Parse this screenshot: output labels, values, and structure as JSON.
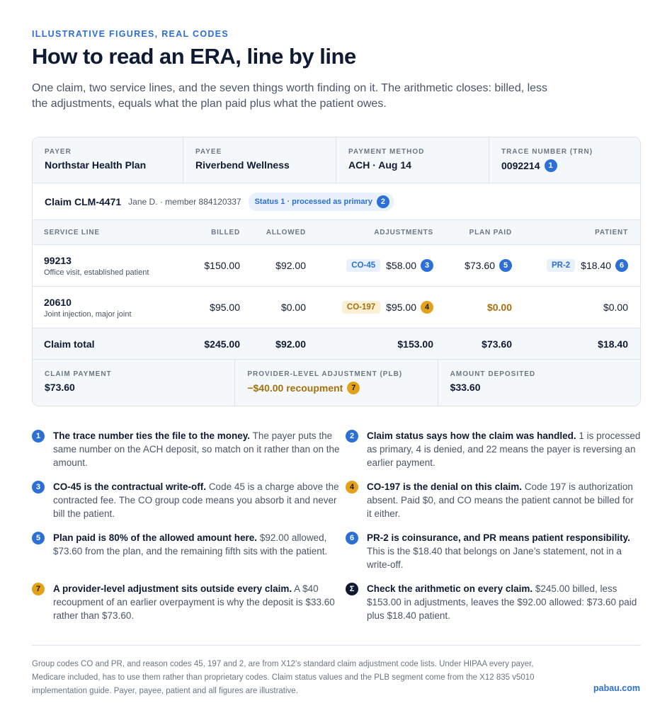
{
  "eyebrow": "ILLUSTRATIVE FIGURES, REAL CODES",
  "title": "How to read an ERA, line by line",
  "intro": "One claim, two service lines, and the seven things worth finding on it. The arithmetic closes: billed, less the adjustments, equals what the plan paid plus what the patient owes.",
  "header": [
    {
      "label": "PAYER",
      "value": "Northstar Health Plan"
    },
    {
      "label": "PAYEE",
      "value": "Riverbend Wellness"
    },
    {
      "label": "PAYMENT METHOD",
      "value": "ACH · Aug 14"
    },
    {
      "label": "TRACE NUMBER (TRN)",
      "value": "0092214",
      "badge": "1"
    }
  ],
  "claim": {
    "id": "Claim CLM-4471",
    "patient": "Jane D. · member 884120337",
    "status": "Status 1 · processed as primary",
    "badge": "2"
  },
  "columns": [
    "SERVICE LINE",
    "BILLED",
    "ALLOWED",
    "ADJUSTMENTS",
    "PLAN PAID",
    "PATIENT"
  ],
  "lines": [
    {
      "code": "99213",
      "description": "Office visit, established patient",
      "billed": "$150.00",
      "allowed": "$92.00",
      "adjustment_code": "CO-45",
      "adjustment": "$58.00",
      "adjustment_badge": "3",
      "plan_paid": "$73.60",
      "plan_paid_badge": "5",
      "patient_code": "PR-2",
      "patient": "$18.40",
      "patient_badge": "6"
    },
    {
      "code": "20610",
      "description": "Joint injection, major joint",
      "billed": "$95.00",
      "allowed": "$0.00",
      "adjustment_code": "CO-197",
      "adjustment": "$95.00",
      "adjustment_badge": "4",
      "plan_paid": "$0.00",
      "patient": "$0.00"
    }
  ],
  "total": {
    "label": "Claim total",
    "billed": "$245.00",
    "allowed": "$92.00",
    "adjustments": "$153.00",
    "plan_paid": "$73.60",
    "patient": "$18.40"
  },
  "summary": [
    {
      "label": "CLAIM PAYMENT",
      "value": "$73.60"
    },
    {
      "label": "PROVIDER-LEVEL ADJUSTMENT (PLB)",
      "value": "−$40.00 recoupment",
      "badge": "7"
    },
    {
      "label": "AMOUNT DEPOSITED",
      "value": "$33.60"
    }
  ],
  "notes": [
    {
      "badge": "1",
      "lead": "The trace number ties the file to the money.",
      "text": "The payer puts the same number on the ACH deposit, so match on it rather than on the amount."
    },
    {
      "badge": "2",
      "lead": "Claim status says how the claim was handled.",
      "text": "1 is processed as primary, 4 is denied, and 22 means the payer is reversing an earlier payment."
    },
    {
      "badge": "3",
      "lead": "CO-45 is the contractual write-off.",
      "text": "Code 45 is a charge above the contracted fee. The CO group code means you absorb it and never bill the patient."
    },
    {
      "badge": "4",
      "lead": "CO-197 is the denial on this claim.",
      "text": "Code 197 is authorization absent. Paid $0, and CO means the patient cannot be billed for it either."
    },
    {
      "badge": "5",
      "lead": "Plan paid is 80% of the allowed amount here.",
      "text": "$92.00 allowed, $73.60 from the plan, and the remaining fifth sits with the patient."
    },
    {
      "badge": "6",
      "lead": "PR-2 is coinsurance, and PR means patient responsibility.",
      "text": "This is the $18.40 that belongs on Jane’s statement, not in a write-off."
    },
    {
      "badge": "7",
      "lead": "A provider-level adjustment sits outside every claim.",
      "text": "A $40 recoupment of an earlier overpayment is why the deposit is $33.60 rather than $73.60."
    },
    {
      "badge": "Σ",
      "lead": "Check the arithmetic on every claim.",
      "text": "$245.00 billed, less $153.00 in adjustments, leaves the $92.00 allowed: $73.60 paid plus $18.40 patient."
    }
  ],
  "footer": {
    "note": "Group codes CO and PR, and reason codes 45, 197 and 2, are from X12’s standard claim adjustment code lists. Under HIPAA every payer, Medicare included, has to use them rather than proprietary codes. Claim status values and the PLB segment come from the X12 835 v5010 implementation guide. Payer, payee, patient and all figures are illustrative.",
    "brand": "pabau.com"
  }
}
